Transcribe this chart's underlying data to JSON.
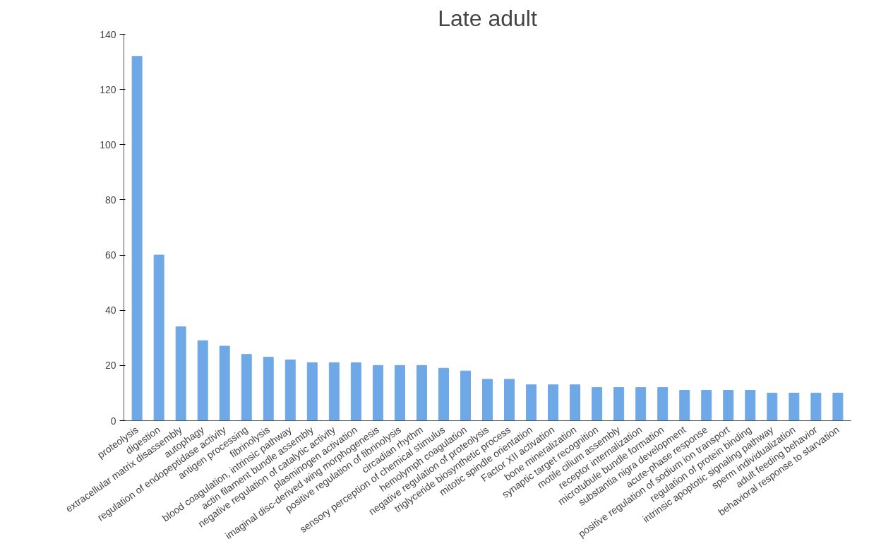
{
  "chart_data": {
    "type": "bar",
    "title": "Late adult",
    "categories": [
      "proteolysis",
      "digestion",
      "extracellular matrix disassembly",
      "autophagy",
      "regulation of endopeptidase activity",
      "antigen processing",
      "fibrinolysis",
      "blood coagulation, intrinsic pathway",
      "actin filament bundle assembly",
      "negative regulation of catalytic activity",
      "plasminogen activation",
      "imaginal disc-derived wing morphogenesis",
      "positive regulation of fibrinolysis",
      "circadian rhythm",
      "sensory perception of chemical stimulus",
      "hemolymph coagulation",
      "negative regulation of proteolysis",
      "triglyceride biosynthetic process",
      "mitotic spindle orientation",
      "Factor XII activation",
      "bone mineralization",
      "synaptic target recognition",
      "motile cilium assembly",
      "receptor internalization",
      "microtubule bundle formation",
      "substantia nigra development",
      "acute-phase response",
      "positive regulation of sodium ion transport",
      "regulation of protein binding",
      "intrinsic apoptotic signaling pathway",
      "sperm individualization",
      "adult feeding behavior",
      "behavioral response to starvation"
    ],
    "values": [
      132,
      60,
      34,
      29,
      27,
      24,
      23,
      22,
      21,
      21,
      21,
      20,
      20,
      20,
      19,
      18,
      15,
      15,
      13,
      13,
      13,
      12,
      12,
      12,
      12,
      11,
      11,
      11,
      11,
      10,
      10,
      10,
      10
    ],
    "color": "#6fa8e6",
    "ylim": [
      0,
      140
    ],
    "yticks": [
      0,
      20,
      40,
      60,
      80,
      100,
      120,
      140
    ],
    "grid": false
  }
}
